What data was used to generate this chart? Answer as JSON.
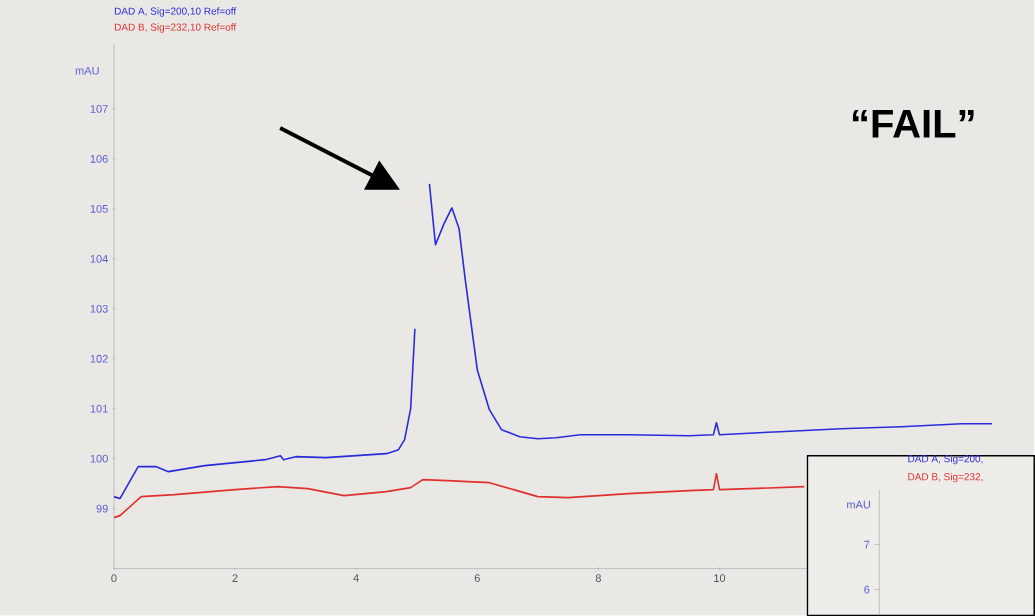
{
  "chart_data": [
    {
      "type": "line",
      "xlim": [
        0,
        15
      ],
      "xticks": [
        0,
        2,
        4,
        6,
        8,
        10
      ],
      "ylim": [
        97.8,
        108.3
      ],
      "yticks": [
        99,
        100,
        101,
        102,
        103,
        104,
        105,
        106,
        107
      ],
      "ylabel": "mAU",
      "annotations": [
        "“FAIL”"
      ],
      "series": [
        {
          "name": "DAD A, Sig=200,10 Ref=off",
          "color": "#2b2bdc",
          "x": [
            0,
            0.1,
            0.4,
            0.7,
            0.9,
            1.5,
            2.0,
            2.5,
            2.75,
            2.8,
            3.0,
            3.5,
            4.0,
            4.5,
            4.7,
            4.8,
            4.9,
            4.97,
            5.05,
            5.2,
            5.21,
            5.31,
            5.45,
            5.58,
            5.7,
            5.8,
            6.0,
            6.2,
            6.4,
            6.7,
            7.0,
            7.3,
            7.7,
            8.5,
            9.5,
            9.9,
            9.95,
            10.0,
            11.0,
            12.0,
            13.0,
            14.0,
            14.5
          ],
          "values": [
            99.24,
            99.2,
            99.84,
            99.84,
            99.74,
            99.86,
            99.92,
            99.98,
            100.06,
            99.98,
            100.04,
            100.02,
            100.06,
            100.1,
            100.18,
            100.38,
            101.0,
            102.6,
            null,
            null,
            105.5,
            104.28,
            104.7,
            105.02,
            104.6,
            103.6,
            101.78,
            100.98,
            100.58,
            100.44,
            100.4,
            100.42,
            100.48,
            100.48,
            100.46,
            100.48,
            100.72,
            100.48,
            100.54,
            100.6,
            100.64,
            100.7,
            100.7
          ]
        },
        {
          "name": "DAD B, Sig=232,10 Ref=off",
          "color": "#e03030",
          "x": [
            0,
            0.1,
            0.45,
            1.0,
            2.0,
            2.7,
            3.2,
            3.8,
            4.5,
            4.9,
            5.1,
            5.5,
            6.2,
            6.6,
            7.0,
            7.5,
            8.5,
            9.5,
            9.9,
            9.95,
            10.0,
            10.5,
            11.4
          ],
          "values": [
            98.82,
            98.86,
            99.24,
            99.28,
            99.38,
            99.44,
            99.4,
            99.26,
            99.34,
            99.42,
            99.58,
            99.56,
            99.52,
            99.38,
            99.24,
            99.22,
            99.3,
            99.36,
            99.38,
            99.7,
            99.38,
            99.4,
            99.44
          ]
        }
      ]
    },
    {
      "type": "other",
      "ylabel": "mAU",
      "annotations": [
        "7",
        "6"
      ],
      "series": [
        {
          "name": "DAD A, Sig=200,",
          "color": "#2b2bdc"
        },
        {
          "name": "DAD B, Sig=232,",
          "color": "#e03030"
        }
      ]
    }
  ]
}
